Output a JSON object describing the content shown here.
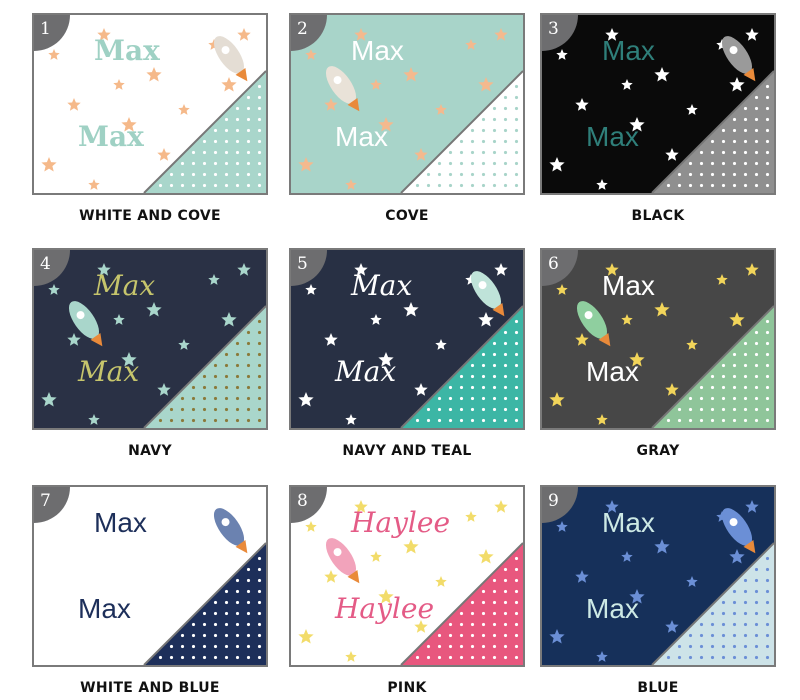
{
  "swatches": [
    {
      "number": "1",
      "label": "WHITE AND COVE",
      "names": [
        "Max",
        "Max"
      ],
      "style": "serif",
      "bg": "#ffffff",
      "star": "#f5b98a",
      "text": "#9fd1c4",
      "tri": "#a9d6cb",
      "dot": "#ffffff",
      "rocket": "#e4ddd4"
    },
    {
      "number": "2",
      "label": "COVE",
      "names": [
        "Max",
        "Max"
      ],
      "style": "sans",
      "bg": "#a8d4c9",
      "star": "#f4b98e",
      "text": "#ffffff",
      "tri": "#ffffff",
      "dot": "#a8d4c9",
      "rocket": "#e9e2d8"
    },
    {
      "number": "3",
      "label": "BLACK",
      "names": [
        "Max",
        "Max"
      ],
      "style": "sans",
      "bg": "#0a0a0a",
      "star": "#ffffff",
      "text": "#2f7f7a",
      "tri": "#8f8f8f",
      "dot": "#ffffff",
      "rocket": "#9a9a9a"
    },
    {
      "number": "4",
      "label": "NAVY",
      "names": [
        "Max",
        "Max"
      ],
      "style": "script",
      "bg": "#2a3145",
      "star": "#a9d6cb",
      "text": "#c6c56c",
      "tri": "#a9d6cb",
      "dot": "#8a7a3a",
      "rocket": "#a9d6cb"
    },
    {
      "number": "5",
      "label": "NAVY AND TEAL",
      "names": [
        "Max",
        "Max"
      ],
      "style": "script",
      "bg": "#283044",
      "star": "#ffffff",
      "text": "#ffffff",
      "tri": "#3cb6a5",
      "dot": "#ffffff",
      "rocket": "#bfe3d9"
    },
    {
      "number": "6",
      "label": "GRAY",
      "names": [
        "Max",
        "Max"
      ],
      "style": "sans",
      "bg": "#474747",
      "star": "#f2d55a",
      "text": "#ffffff",
      "tri": "#8fc59a",
      "dot": "#ffffff",
      "rocket": "#8fcf9f"
    },
    {
      "number": "7",
      "label": "WHITE AND BLUE",
      "names": [
        "Max",
        "Max"
      ],
      "style": "sans",
      "bg": "#ffffff",
      "star": "#ffffff",
      "text": "#1d2f5a",
      "tri": "#1d2f5a",
      "dot": "#ffffff",
      "rocket": "#6b82b0"
    },
    {
      "number": "8",
      "label": "PINK",
      "names": [
        "Haylee",
        "Haylee"
      ],
      "style": "script",
      "bg": "#ffffff",
      "star": "#f2dc6a",
      "text": "#e45b86",
      "tri": "#e8577e",
      "dot": "#ffffff",
      "rocket": "#f2a3bb"
    },
    {
      "number": "9",
      "label": "BLUE",
      "names": [
        "Max",
        "Max"
      ],
      "style": "sans",
      "bg": "#16305a",
      "star": "#6b8fd6",
      "text": "#cde9e5",
      "tri": "#cde3e8",
      "dot": "#6b8fd6",
      "rocket": "#6b8fd6"
    }
  ]
}
